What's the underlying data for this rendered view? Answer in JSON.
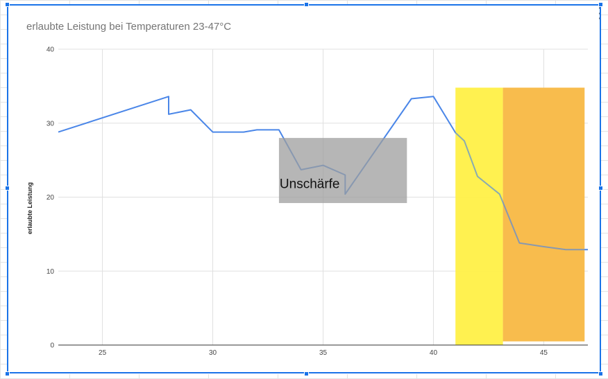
{
  "chart_data": {
    "type": "line",
    "title": "erlaubte Leistung bei Temperaturen 23-47°C",
    "xlabel": "",
    "ylabel": "erlaubte Leistung",
    "xlim": [
      23,
      47
    ],
    "ylim": [
      0,
      40
    ],
    "x_ticks": [
      25,
      30,
      35,
      40,
      45
    ],
    "y_ticks": [
      0,
      10,
      20,
      30,
      40
    ],
    "grid": true,
    "legend": "none",
    "series": [
      {
        "color": "#4a86e8",
        "points": [
          [
            23,
            28.8
          ],
          [
            28,
            33.6
          ],
          [
            28,
            31.2
          ],
          [
            29,
            31.8
          ],
          [
            30,
            28.8
          ],
          [
            31.4,
            28.8
          ],
          [
            32,
            29.1
          ],
          [
            33,
            29.1
          ],
          [
            34,
            23.7
          ],
          [
            35,
            24.3
          ],
          [
            36,
            23.0
          ],
          [
            36,
            20.4
          ],
          [
            39,
            33.3
          ],
          [
            40,
            33.6
          ],
          [
            41,
            28.7
          ],
          [
            41.4,
            27.6
          ],
          [
            42,
            22.8
          ],
          [
            43,
            20.4
          ],
          [
            43.9,
            13.8
          ],
          [
            45,
            13.3
          ],
          [
            46,
            12.9
          ],
          [
            47,
            12.9
          ]
        ]
      }
    ],
    "annotations": [
      {
        "kind": "overlay",
        "label": "Unschärfe",
        "color": "#9e9e9e",
        "x0": 33,
        "x1": 38.8,
        "y0": 19.2,
        "y1": 28.0
      },
      {
        "kind": "highlight",
        "color": "#fff04a",
        "x0": 41.0,
        "x1": 43.15,
        "y0": 0,
        "y1": 34.8
      },
      {
        "kind": "highlight",
        "color": "#f8bb48",
        "x0": 43.15,
        "x1": 46.85,
        "y0": 0.5,
        "y1": 34.8
      }
    ]
  }
}
